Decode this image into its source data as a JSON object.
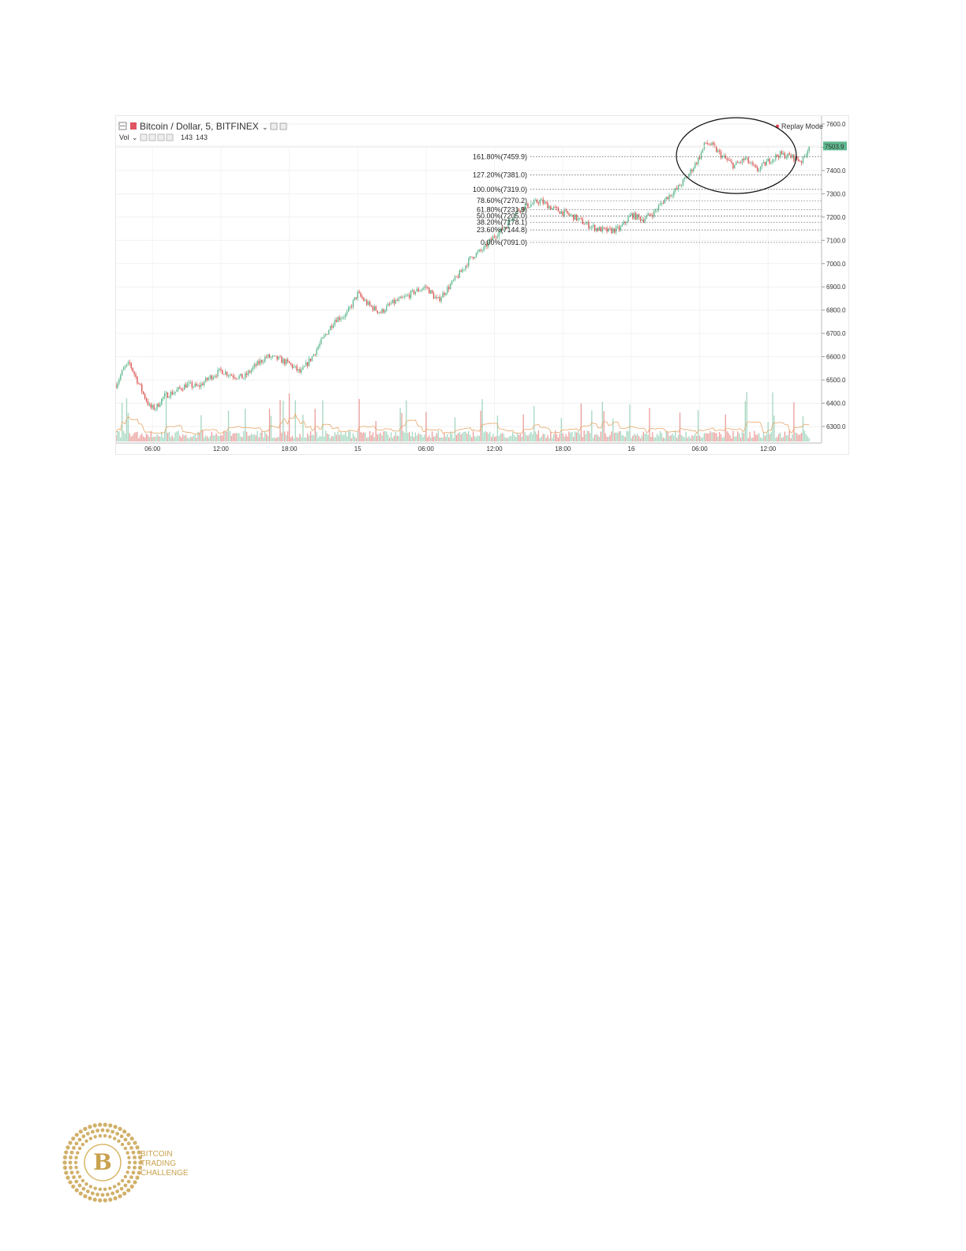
{
  "header": {
    "symbol": "Bitcoin / Dollar, 5, BITFINEX",
    "vol_label": "Vol",
    "vol_value_1": "143",
    "vol_value_2": "143",
    "replay_mode": "Replay Mode"
  },
  "price_badge": "7503.9",
  "colors": {
    "up": "#5fb88f",
    "down": "#d9534f",
    "badge": "#5fb88f",
    "replay": "#e0454f",
    "vol_ma": "#e8a86b",
    "logo_gold": "#c9a24f"
  },
  "logo": {
    "line1": "BITCOIN",
    "line2": "TRADING",
    "line3": "CHALLENGE"
  },
  "chart_data": {
    "type": "candlestick",
    "title": "Bitcoin / Dollar, 5, BITFINEX",
    "y_ticks": [
      7600.0,
      7500.0,
      7400.0,
      7300.0,
      7200.0,
      7100.0,
      7000.0,
      6900.0,
      6800.0,
      6700.0,
      6600.0,
      6500.0,
      6400.0,
      6300.0
    ],
    "y_tick_labels": [
      "7600.0",
      "7500.0",
      "7400.0",
      "7300.0",
      "7200.0",
      "7100.0",
      "7000.0",
      "6900.0",
      "6800.0",
      "6700.0",
      "6600.0",
      "6500.0",
      "6400.0",
      "6300.0"
    ],
    "ylim": [
      6250,
      7640
    ],
    "x_ticks": [
      "06:00",
      "12:00",
      "18:00",
      "15",
      "06:00",
      "12:00",
      "18:00",
      "16",
      "06:00",
      "12:00"
    ],
    "x_tick_hours": [
      6,
      12,
      18,
      24,
      30,
      36,
      42,
      48,
      54,
      60
    ],
    "xlim": [
      2.8,
      64
    ],
    "last_price": 7503.9,
    "price_path": [
      [
        2.8,
        6480
      ],
      [
        3.5,
        6550
      ],
      [
        4.0,
        6570
      ],
      [
        5.2,
        6440
      ],
      [
        5.8,
        6380
      ],
      [
        6.3,
        6380
      ],
      [
        7.0,
        6430
      ],
      [
        8.0,
        6450
      ],
      [
        9.0,
        6480
      ],
      [
        10.0,
        6470
      ],
      [
        11.0,
        6510
      ],
      [
        12.0,
        6540
      ],
      [
        13.0,
        6520
      ],
      [
        14.0,
        6510
      ],
      [
        15.0,
        6560
      ],
      [
        16.0,
        6600
      ],
      [
        17.0,
        6590
      ],
      [
        18.0,
        6570
      ],
      [
        19.0,
        6530
      ],
      [
        20.0,
        6600
      ],
      [
        21.0,
        6680
      ],
      [
        22.0,
        6760
      ],
      [
        23.0,
        6780
      ],
      [
        24.0,
        6870
      ],
      [
        25.0,
        6820
      ],
      [
        26.0,
        6790
      ],
      [
        27.0,
        6830
      ],
      [
        28.0,
        6850
      ],
      [
        29.0,
        6880
      ],
      [
        30.0,
        6900
      ],
      [
        31.0,
        6840
      ],
      [
        32.0,
        6900
      ],
      [
        33.0,
        6960
      ],
      [
        34.0,
        7030
      ],
      [
        35.0,
        7060
      ],
      [
        35.5,
        7090
      ],
      [
        36.0,
        7120
      ],
      [
        37.0,
        7160
      ],
      [
        37.5,
        7200
      ],
      [
        38.0,
        7230
      ],
      [
        39.0,
        7250
      ],
      [
        40.0,
        7270
      ],
      [
        41.0,
        7240
      ],
      [
        42.0,
        7220
      ],
      [
        43.0,
        7200
      ],
      [
        44.0,
        7170
      ],
      [
        45.0,
        7150
      ],
      [
        46.0,
        7140
      ],
      [
        47.0,
        7150
      ],
      [
        48.0,
        7210
      ],
      [
        49.0,
        7190
      ],
      [
        50.0,
        7220
      ],
      [
        51.0,
        7280
      ],
      [
        52.0,
        7320
      ],
      [
        53.0,
        7380
      ],
      [
        54.0,
        7460
      ],
      [
        54.5,
        7520
      ],
      [
        55.0,
        7510
      ],
      [
        56.0,
        7460
      ],
      [
        57.0,
        7420
      ],
      [
        58.0,
        7450
      ],
      [
        59.0,
        7400
      ],
      [
        60.0,
        7440
      ],
      [
        61.0,
        7470
      ],
      [
        62.0,
        7460
      ],
      [
        63.0,
        7440
      ],
      [
        63.6,
        7503.9
      ]
    ],
    "fibonacci": [
      {
        "label": "161.80%(7459.9)",
        "price": 7459.9
      },
      {
        "label": "127.20%(7381.0)",
        "price": 7381.0
      },
      {
        "label": "100.00%(7319.0)",
        "price": 7319.0
      },
      {
        "label": "78.60%(7270.2)",
        "price": 7270.2
      },
      {
        "label": "61.80%(7231.9)",
        "price": 7231.9
      },
      {
        "label": "50.00%(7205.0)",
        "price": 7205.0
      },
      {
        "label": "38.20%(7178.1)",
        "price": 7178.1
      },
      {
        "label": "23.60%(7144.8)",
        "price": 7144.8
      },
      {
        "label": "0.00%(7091.0)",
        "price": 7091.0
      }
    ],
    "volume_series": "volume bars at chart bottom, up = green, down = red, with moving average line",
    "annotation": "ellipse around consolidation between ~7390 and ~7560, 05:00–12:30 on day 16"
  }
}
